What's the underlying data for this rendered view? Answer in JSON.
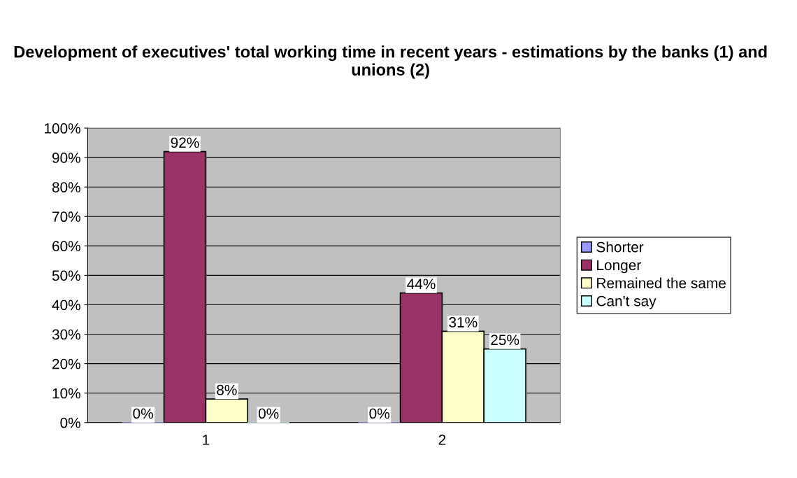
{
  "chart_data": {
    "type": "bar",
    "title": "Development of executives' total working time in recent years - estimations by the banks (1) and unions (2)",
    "categories": [
      "1",
      "2"
    ],
    "series": [
      {
        "name": "Shorter",
        "color": "#9999ff",
        "values": [
          0,
          0
        ],
        "value_labels": [
          "0%",
          "0%"
        ]
      },
      {
        "name": "Longer",
        "color": "#993366",
        "values": [
          92,
          44
        ],
        "value_labels": [
          "92%",
          "44%"
        ]
      },
      {
        "name": "Remained the same",
        "color": "#ffffcc",
        "values": [
          8,
          31
        ],
        "value_labels": [
          "8%",
          "31%"
        ]
      },
      {
        "name": "Can't say",
        "color": "#ccffff",
        "values": [
          0,
          25
        ],
        "value_labels": [
          "0%",
          "25%"
        ]
      }
    ],
    "ylim": [
      0,
      100
    ],
    "yticks": [
      {
        "value": 0,
        "label": "0%"
      },
      {
        "value": 10,
        "label": "10%"
      },
      {
        "value": 20,
        "label": "20%"
      },
      {
        "value": 30,
        "label": "30%"
      },
      {
        "value": 40,
        "label": "40%"
      },
      {
        "value": 50,
        "label": "50%"
      },
      {
        "value": 60,
        "label": "60%"
      },
      {
        "value": 70,
        "label": "70%"
      },
      {
        "value": 80,
        "label": "80%"
      },
      {
        "value": 90,
        "label": "90%"
      },
      {
        "value": 100,
        "label": "100%"
      }
    ],
    "grid": "y",
    "legend": "right"
  }
}
